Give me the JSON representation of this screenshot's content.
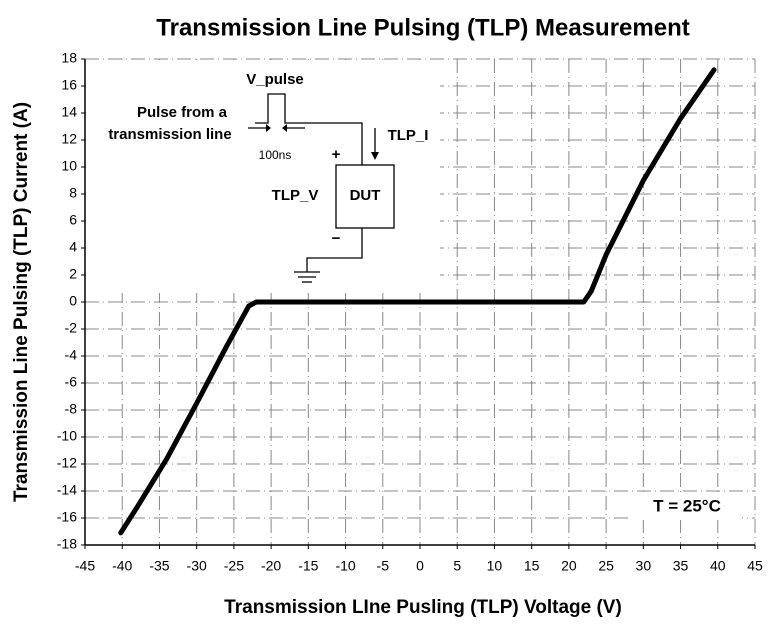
{
  "chart_data": {
    "type": "line",
    "title": "Transmission Line Pulsing (TLP) Measurement",
    "x_label": "Transmission LIne Pusling (TLP) Voltage (V)",
    "y_label": "Transmission Line Pulsing (TLP) Current (A)",
    "x": [
      -40.2,
      -38,
      -36,
      -34,
      -30,
      -26,
      -23,
      -22,
      0,
      22,
      23,
      25,
      30,
      35,
      39.5
    ],
    "series": [
      {
        "color": "#000000",
        "values": [
          -17.1,
          -15.2,
          -13.4,
          -11.6,
          -7.5,
          -3.3,
          -0.3,
          0,
          0,
          0,
          0.8,
          3.5,
          9,
          13.6,
          17.2
        ]
      }
    ],
    "xlim": [
      -45,
      45
    ],
    "ylim": [
      -18,
      18
    ],
    "xticks": [
      -45,
      -40,
      -35,
      -30,
      -25,
      -20,
      -15,
      -10,
      -5,
      0,
      5,
      10,
      15,
      20,
      25,
      30,
      35,
      40,
      45
    ],
    "yticks": [
      -18,
      -16,
      -14,
      -12,
      -10,
      -8,
      -6,
      -4,
      -2,
      0,
      2,
      4,
      6,
      8,
      10,
      12,
      14,
      16,
      18
    ],
    "grid": true,
    "annotations": {
      "v_pulse": "V_pulse",
      "pulse_source": [
        "Pulse from a",
        "transmission line"
      ],
      "pulse_width": "100ns",
      "current_label": "TLP_I",
      "plus": "+",
      "voltage_label": "TLP_V",
      "device": "DUT",
      "minus": "−",
      "temperature": "T = 25°C"
    }
  }
}
